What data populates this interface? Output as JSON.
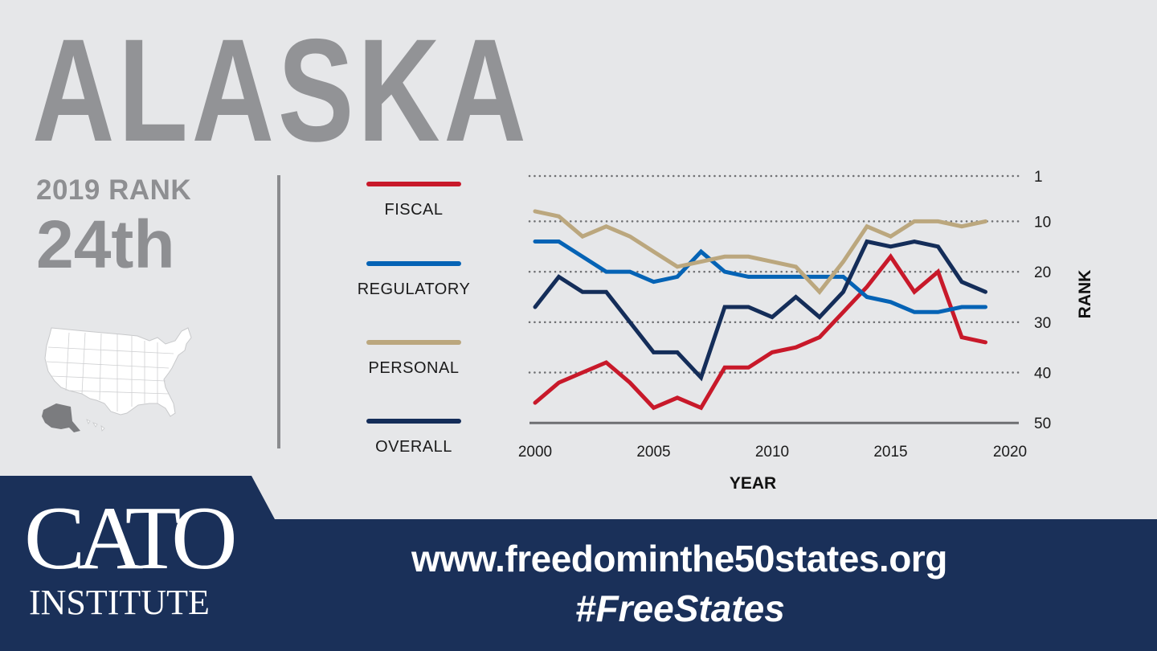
{
  "header": {
    "state_name": "ALASKA",
    "rank_label": "2019 RANK",
    "rank_value": "24th"
  },
  "legend": {
    "items": [
      {
        "label": "FISCAL",
        "color": "#c8192a"
      },
      {
        "label": "REGULATORY",
        "color": "#0563b5"
      },
      {
        "label": "PERSONAL",
        "color": "#bba77e"
      },
      {
        "label": "OVERALL",
        "color": "#142d59"
      }
    ]
  },
  "footer": {
    "logo_top": "CATO",
    "logo_bottom": "INSTITUTE",
    "url": "www.freedominthe50states.org",
    "hashtag": "#FreeStates",
    "background_color": "#1a3059"
  },
  "colors": {
    "background": "#e6e7e9",
    "title_gray": "#929396",
    "grid": "#6e6f72",
    "alaska_highlight": "#7b7c7f"
  },
  "chart_data": {
    "type": "line",
    "title": "ALASKA",
    "xlabel": "YEAR",
    "ylabel": "RANK",
    "x": [
      2000,
      2001,
      2002,
      2003,
      2004,
      2005,
      2006,
      2007,
      2008,
      2009,
      2010,
      2011,
      2012,
      2013,
      2014,
      2015,
      2016,
      2017,
      2018,
      2019
    ],
    "x_ticks": [
      2000,
      2005,
      2010,
      2015,
      2020
    ],
    "y_ticks": [
      1,
      10,
      20,
      30,
      40,
      50
    ],
    "ylim": [
      50,
      1
    ],
    "y_inverted": true,
    "grid": "horizontal dotted",
    "legend_position": "left",
    "series": [
      {
        "name": "FISCAL",
        "color": "#c8192a",
        "values": [
          46,
          42,
          40,
          38,
          42,
          47,
          45,
          47,
          39,
          39,
          36,
          35,
          33,
          28,
          23,
          17,
          24,
          20,
          33,
          34
        ]
      },
      {
        "name": "REGULATORY",
        "color": "#0563b5",
        "values": [
          14,
          14,
          17,
          20,
          20,
          22,
          21,
          16,
          20,
          21,
          21,
          21,
          21,
          21,
          25,
          26,
          28,
          28,
          27,
          27
        ]
      },
      {
        "name": "PERSONAL",
        "color": "#bba77e",
        "values": [
          8,
          9,
          13,
          11,
          13,
          16,
          19,
          18,
          17,
          17,
          18,
          19,
          24,
          18,
          11,
          13,
          10,
          10,
          11,
          10
        ]
      },
      {
        "name": "OVERALL",
        "color": "#142d59",
        "values": [
          27,
          21,
          24,
          24,
          30,
          36,
          36,
          41,
          27,
          27,
          29,
          25,
          29,
          24,
          14,
          15,
          14,
          15,
          22,
          24
        ]
      }
    ]
  }
}
